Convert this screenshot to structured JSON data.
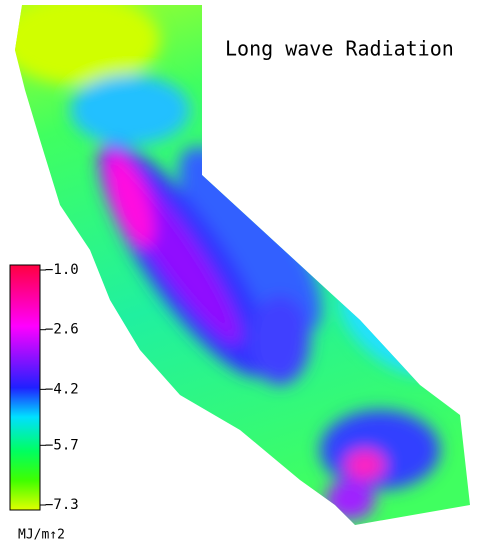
{
  "title": "Long wave Radiation",
  "colorbar": {
    "lim": [
      -7.3,
      -1.0
    ],
    "ticks": [
      {
        "value": -1.0,
        "label": "−1.0"
      },
      {
        "value": -2.6,
        "label": "−2.6"
      },
      {
        "value": -4.2,
        "label": "−4.2"
      },
      {
        "value": -5.7,
        "label": "−5.7"
      },
      {
        "value": -7.3,
        "label": "−7.3"
      }
    ],
    "unit": "MJ/m↑2"
  }
}
